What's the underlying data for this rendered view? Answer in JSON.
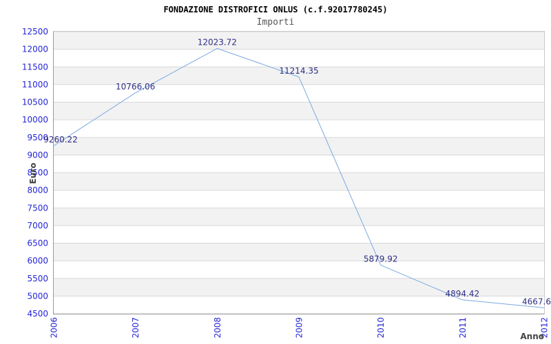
{
  "header": {
    "title": "FONDAZIONE DISTROFICI ONLUS (c.f.92017780245)",
    "subtitle": "Importi"
  },
  "chart_data": {
    "type": "line",
    "title": "FONDAZIONE DISTROFICI ONLUS (c.f.92017780245)",
    "subtitle": "Importi",
    "xlabel": "Anno",
    "ylabel": "Euro",
    "categories": [
      "2006",
      "2007",
      "2008",
      "2009",
      "2010",
      "2011",
      "2012"
    ],
    "series": [
      {
        "name": "Importi",
        "values": [
          9260.22,
          10766.06,
          12023.72,
          11214.35,
          5879.92,
          4894.42,
          4667.6
        ]
      }
    ],
    "point_labels": [
      "9260.22",
      "10766.06",
      "12023.72",
      "11214.35",
      "5879.92",
      "4894.42",
      "4667.6"
    ],
    "ylim": [
      4500,
      12500
    ],
    "ytick_step": 500,
    "grid": "horizontal-bands",
    "legend": "none",
    "colors": {
      "line": "#7aa8e0",
      "axis_text": "#2424d6",
      "value_label": "#2e2e85",
      "band_gray": "#f2f2f2",
      "band_white": "#ffffff",
      "grid_line": "#d8d8d8",
      "border": "#c8c8c8",
      "axis_line": "#999999",
      "title": "#000000",
      "subtitle": "#555555",
      "axis_title": "#444444"
    }
  }
}
